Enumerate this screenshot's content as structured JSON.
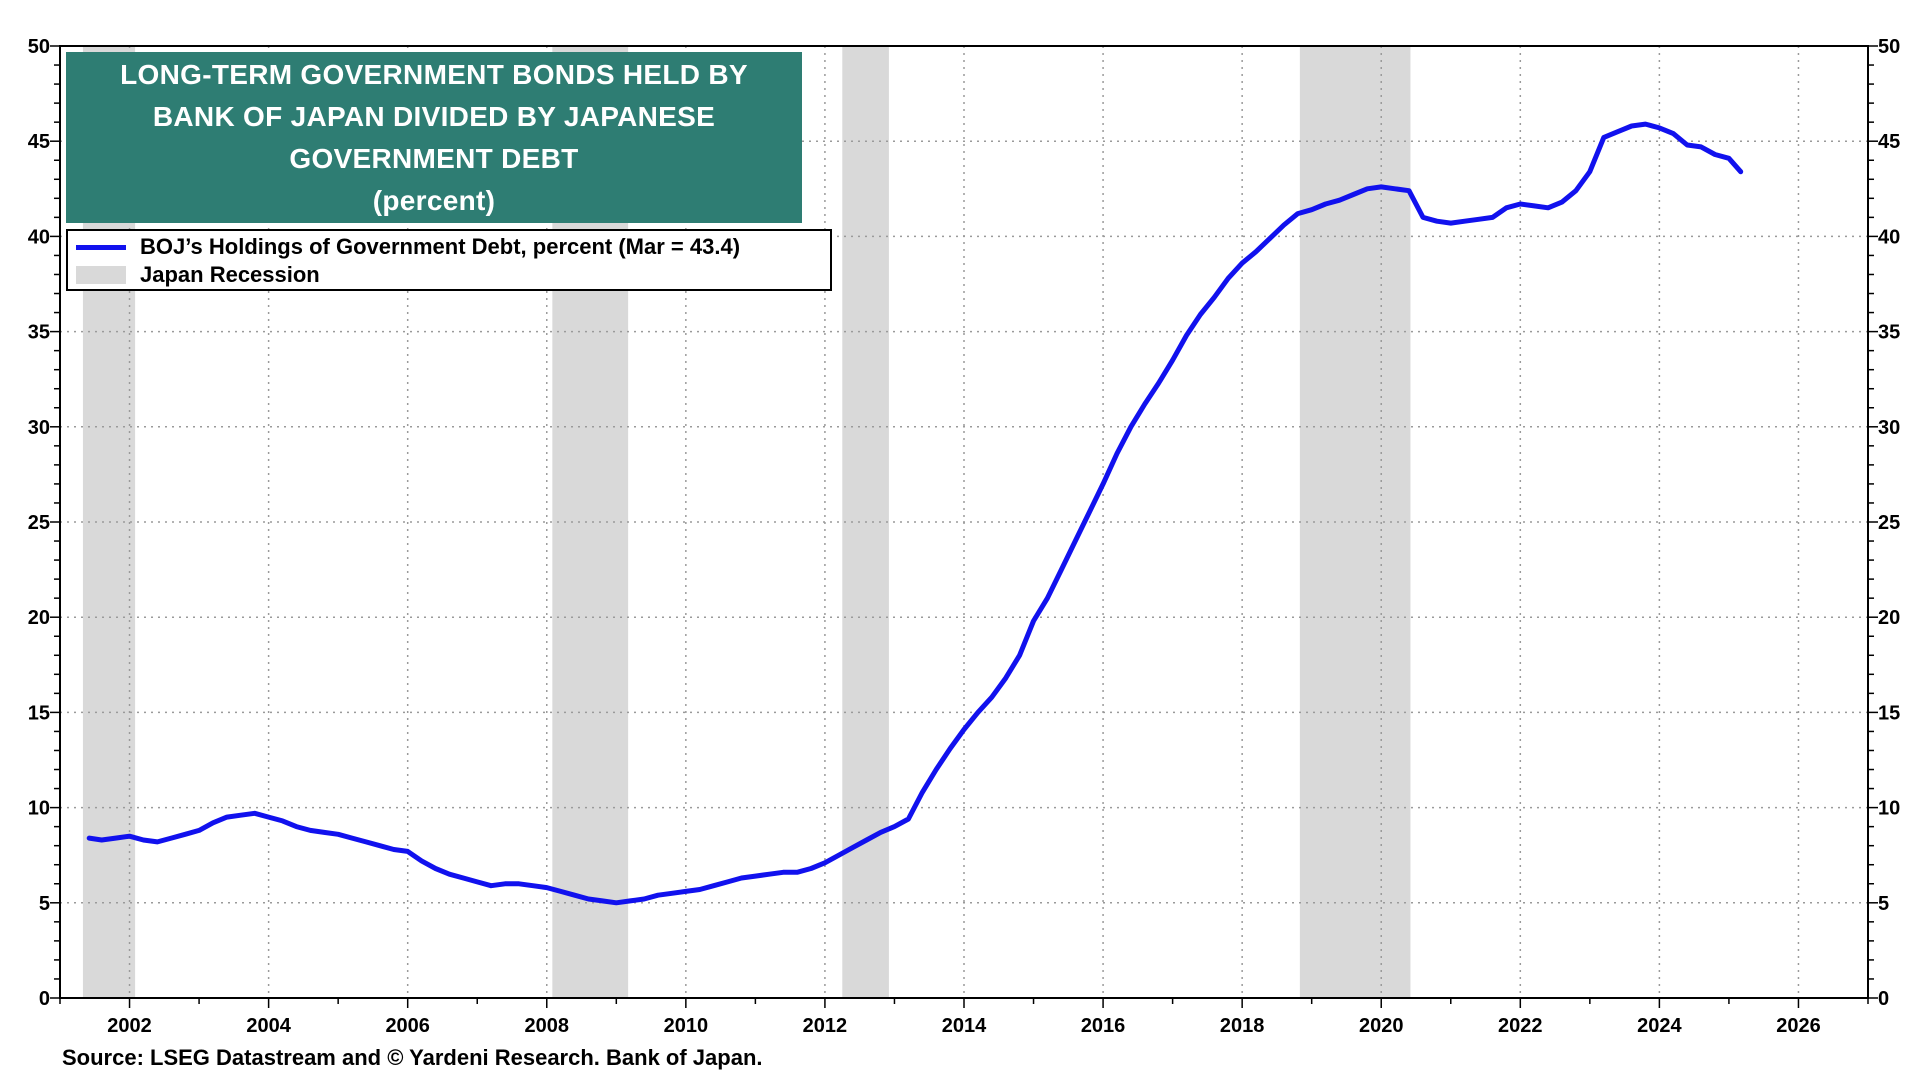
{
  "chart_data": {
    "type": "line",
    "title_lines": [
      "LONG-TERM GOVERNMENT BONDS HELD BY",
      "BANK OF JAPAN DIVIDED BY JAPANESE",
      "GOVERNMENT DEBT",
      "(percent)"
    ],
    "source": "Source: LSEG Datastream and © Yardeni Research. Bank of Japan.",
    "legend": {
      "series_label": "BOJ’s Holdings of Government Debt, percent (Mar = 43.4)",
      "recession_label": "Japan Recession",
      "placement": "top-left"
    },
    "colors": {
      "series": "#1111ee",
      "recession": "#d9d9d9",
      "title_bg": "#2e7d73",
      "grid": "#9a9a9a"
    },
    "xlim": [
      2001.0,
      2027.0
    ],
    "ylim": [
      0,
      50
    ],
    "x_ticks": [
      "2002",
      "2004",
      "2006",
      "2008",
      "2010",
      "2012",
      "2014",
      "2016",
      "2018",
      "2020",
      "2022",
      "2024",
      "2026"
    ],
    "x_tick_values": [
      2002,
      2004,
      2006,
      2008,
      2010,
      2012,
      2014,
      2016,
      2018,
      2020,
      2022,
      2024,
      2026
    ],
    "y_ticks": [
      "0",
      "5",
      "10",
      "15",
      "20",
      "25",
      "30",
      "35",
      "40",
      "45",
      "50"
    ],
    "y_tick_values": [
      0,
      5,
      10,
      15,
      20,
      25,
      30,
      35,
      40,
      45,
      50
    ],
    "grid": true,
    "recessions": [
      [
        2001.33,
        2002.08
      ],
      [
        2008.08,
        2009.17
      ],
      [
        2012.25,
        2012.92
      ],
      [
        2018.83,
        2020.42
      ]
    ],
    "series": [
      {
        "name": "BOJ’s Holdings of Government Debt, percent (Mar = 43.4)",
        "x": [
          2001.42,
          2001.6,
          2001.8,
          2002.0,
          2002.2,
          2002.4,
          2002.6,
          2002.8,
          2003.0,
          2003.2,
          2003.4,
          2003.6,
          2003.8,
          2004.0,
          2004.2,
          2004.4,
          2004.6,
          2004.8,
          2005.0,
          2005.2,
          2005.4,
          2005.6,
          2005.8,
          2006.0,
          2006.2,
          2006.4,
          2006.6,
          2006.8,
          2007.0,
          2007.2,
          2007.4,
          2007.6,
          2007.8,
          2008.0,
          2008.2,
          2008.4,
          2008.6,
          2008.8,
          2009.0,
          2009.2,
          2009.4,
          2009.6,
          2009.8,
          2010.0,
          2010.2,
          2010.4,
          2010.6,
          2010.8,
          2011.0,
          2011.2,
          2011.4,
          2011.6,
          2011.8,
          2012.0,
          2012.2,
          2012.4,
          2012.6,
          2012.8,
          2013.0,
          2013.2,
          2013.4,
          2013.6,
          2013.8,
          2014.0,
          2014.2,
          2014.4,
          2014.6,
          2014.8,
          2015.0,
          2015.2,
          2015.4,
          2015.6,
          2015.8,
          2016.0,
          2016.2,
          2016.4,
          2016.6,
          2016.8,
          2017.0,
          2017.2,
          2017.4,
          2017.6,
          2017.8,
          2018.0,
          2018.2,
          2018.4,
          2018.6,
          2018.8,
          2019.0,
          2019.2,
          2019.4,
          2019.6,
          2019.8,
          2020.0,
          2020.2,
          2020.4,
          2020.6,
          2020.8,
          2021.0,
          2021.2,
          2021.4,
          2021.6,
          2021.8,
          2022.0,
          2022.2,
          2022.4,
          2022.6,
          2022.8,
          2023.0,
          2023.2,
          2023.4,
          2023.6,
          2023.8,
          2024.0,
          2024.2,
          2024.4,
          2024.6,
          2024.8,
          2025.0,
          2025.17
        ],
        "y": [
          8.4,
          8.3,
          8.4,
          8.5,
          8.3,
          8.2,
          8.4,
          8.6,
          8.8,
          9.2,
          9.5,
          9.6,
          9.7,
          9.5,
          9.3,
          9.0,
          8.8,
          8.7,
          8.6,
          8.4,
          8.2,
          8.0,
          7.8,
          7.7,
          7.2,
          6.8,
          6.5,
          6.3,
          6.1,
          5.9,
          6.0,
          6.0,
          5.9,
          5.8,
          5.6,
          5.4,
          5.2,
          5.1,
          5.0,
          5.1,
          5.2,
          5.4,
          5.5,
          5.6,
          5.7,
          5.9,
          6.1,
          6.3,
          6.4,
          6.5,
          6.6,
          6.6,
          6.8,
          7.1,
          7.5,
          7.9,
          8.3,
          8.7,
          9.0,
          9.4,
          10.8,
          12.0,
          13.1,
          14.1,
          15.0,
          15.8,
          16.8,
          18.0,
          19.8,
          21.0,
          22.5,
          24.0,
          25.5,
          27.0,
          28.6,
          30.0,
          31.2,
          32.3,
          33.5,
          34.8,
          35.9,
          36.8,
          37.8,
          38.6,
          39.2,
          39.9,
          40.6,
          41.2,
          41.4,
          41.7,
          41.9,
          42.2,
          42.5,
          42.6,
          42.5,
          42.4,
          41.0,
          40.8,
          40.7,
          40.8,
          40.9,
          41.0,
          41.5,
          41.7,
          41.6,
          41.5,
          41.8,
          42.4,
          43.4,
          45.2,
          45.5,
          45.8,
          45.9,
          45.7,
          45.4,
          44.8,
          44.7,
          44.3,
          44.1,
          43.4
        ]
      }
    ]
  }
}
